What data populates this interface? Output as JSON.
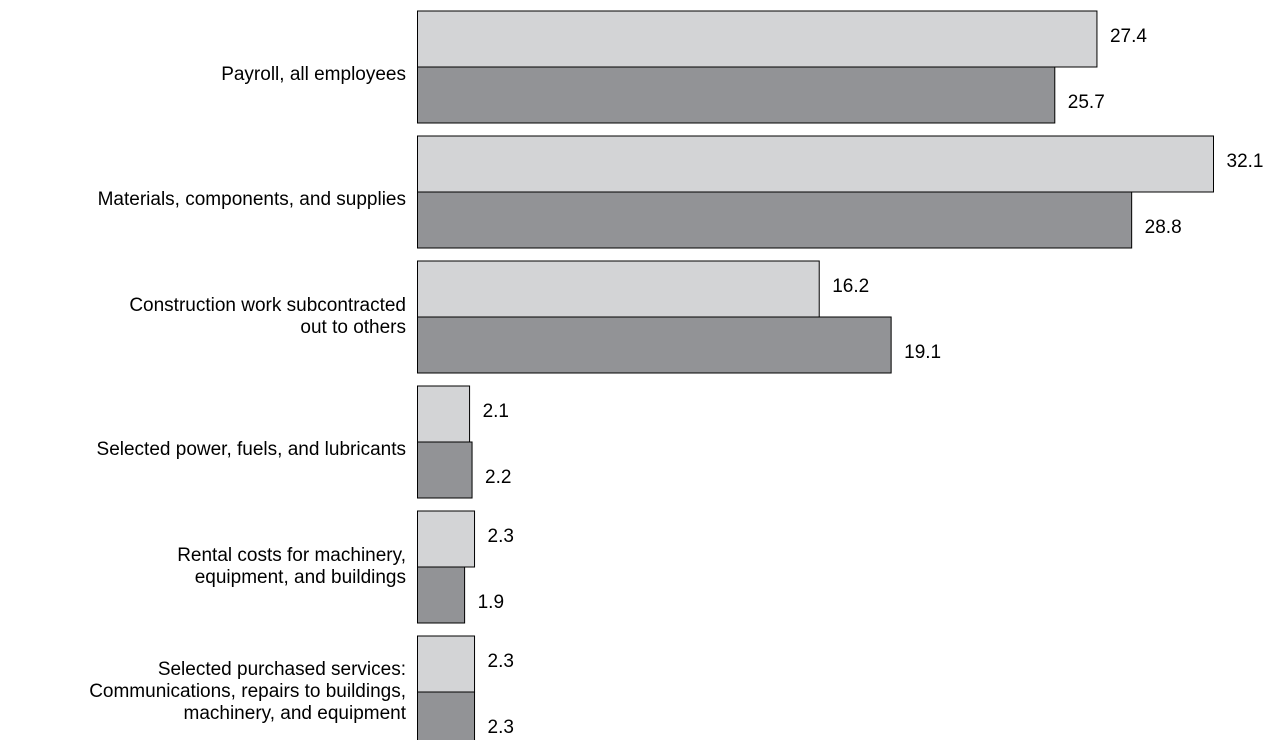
{
  "chart_data": {
    "type": "bar",
    "orientation": "horizontal",
    "categories": [
      [
        "Payroll, all employees"
      ],
      [
        "Materials, components, and supplies"
      ],
      [
        "Construction work subcontracted",
        "out to others"
      ],
      [
        "Selected power, fuels, and lubricants"
      ],
      [
        "Rental costs for machinery,",
        "equipment, and buildings"
      ],
      [
        "Selected purchased services:",
        "Communications, repairs to buildings,",
        "machinery, and equipment"
      ]
    ],
    "series": [
      {
        "color": "#d3d4d6",
        "values": [
          27.4,
          32.1,
          16.2,
          2.1,
          2.3,
          2.3
        ]
      },
      {
        "color": "#929396",
        "values": [
          25.7,
          28.8,
          19.1,
          2.2,
          1.9,
          2.3
        ]
      }
    ],
    "value_labels": [
      [
        "27.4",
        "32.1",
        "16.2",
        "2.1",
        "2.3",
        "2.3"
      ],
      [
        "25.7",
        "28.8",
        "19.1",
        "2.2",
        "1.9",
        "2.3"
      ]
    ],
    "xlim": [
      0,
      32.1
    ],
    "grid": false,
    "legend": "none"
  }
}
